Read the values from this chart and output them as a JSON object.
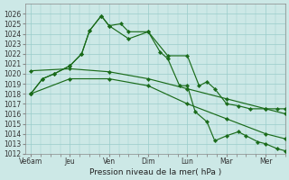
{
  "bg_color": "#cce8e6",
  "grid_color": "#99ccca",
  "line_color": "#1a6b1a",
  "xlabel": "Pression niveau de la mer( hPa )",
  "ylim": [
    1012,
    1027
  ],
  "ytick_min": 1012,
  "ytick_max": 1026,
  "xtick_labels": [
    "Ve6am",
    "Jeu",
    "Ven",
    "Dim",
    "Lun",
    "Mar",
    "Mer"
  ],
  "xtick_positions": [
    0,
    1,
    2,
    3,
    4,
    5,
    6
  ],
  "xmin": -0.15,
  "xmax": 6.5,
  "series1": {
    "x": [
      0,
      0.3,
      0.6,
      1.0,
      1.3,
      1.5,
      1.8,
      2.0,
      2.3,
      2.5,
      3.0,
      3.5,
      4.0,
      4.3,
      4.5,
      4.7,
      5.0,
      5.3,
      5.6,
      6.0,
      6.3,
      6.5
    ],
    "y": [
      1018,
      1019.5,
      1020.0,
      1020.8,
      1022.0,
      1024.3,
      1025.8,
      1024.8,
      1025.0,
      1024.2,
      1024.2,
      1021.8,
      1021.8,
      1018.8,
      1019.2,
      1018.5,
      1017.0,
      1016.8,
      1016.5,
      1016.5,
      1016.5,
      1016.5
    ]
  },
  "series2": {
    "x": [
      0,
      1.0,
      2.0,
      3.0,
      4.0,
      5.0,
      6.0,
      6.5
    ],
    "y": [
      1020.3,
      1020.5,
      1020.2,
      1019.5,
      1018.5,
      1017.5,
      1016.5,
      1016.0
    ]
  },
  "series3": {
    "x": [
      0,
      0.3,
      0.6,
      1.0,
      1.3,
      1.5,
      1.8,
      2.0,
      2.5,
      3.0,
      3.3,
      3.5,
      3.8,
      4.0,
      4.2,
      4.5,
      4.7,
      5.0,
      5.3,
      5.5,
      5.8,
      6.0,
      6.3,
      6.5
    ],
    "y": [
      1018,
      1019.5,
      1020.0,
      1020.8,
      1022.0,
      1024.3,
      1025.8,
      1024.8,
      1023.5,
      1024.2,
      1022.2,
      1021.5,
      1018.8,
      1018.8,
      1016.2,
      1015.2,
      1013.3,
      1013.8,
      1014.2,
      1013.8,
      1013.2,
      1013.0,
      1012.5,
      1012.3
    ]
  },
  "series4": {
    "x": [
      0,
      1.0,
      2.0,
      3.0,
      4.0,
      5.0,
      6.0,
      6.5
    ],
    "y": [
      1018.0,
      1019.5,
      1019.5,
      1018.8,
      1017.0,
      1015.5,
      1014.0,
      1013.5
    ]
  }
}
